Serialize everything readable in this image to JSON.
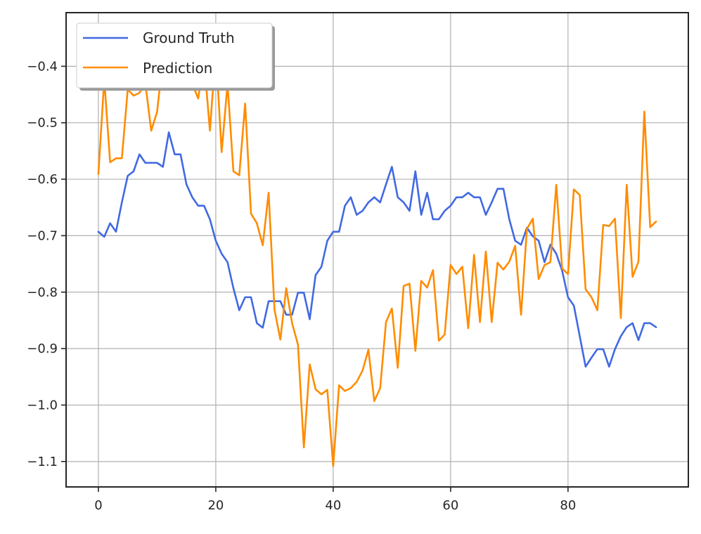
{
  "chart_data": {
    "type": "line",
    "title": "",
    "xlabel": "",
    "ylabel": "",
    "xlim": [
      -5.5,
      100.5
    ],
    "ylim": [
      -1.145,
      -0.305
    ],
    "xticks": [
      0,
      20,
      40,
      60,
      80
    ],
    "yticks": [
      -0.4,
      -0.5,
      -0.6,
      -0.7,
      -0.8,
      -0.9,
      -1.0,
      -1.1
    ],
    "grid": true,
    "legend": "top-left",
    "series": [
      {
        "name": "Ground Truth",
        "color": "#4169e1",
        "x": [
          0,
          1,
          2,
          3,
          4,
          5,
          6,
          7,
          8,
          9,
          10,
          11,
          12,
          13,
          14,
          15,
          16,
          17,
          18,
          19,
          20,
          21,
          22,
          23,
          24,
          25,
          26,
          27,
          28,
          29,
          30,
          31,
          32,
          33,
          34,
          35,
          36,
          37,
          38,
          39,
          40,
          41,
          42,
          43,
          44,
          45,
          46,
          47,
          48,
          49,
          50,
          51,
          52,
          53,
          54,
          55,
          56,
          57,
          58,
          59,
          60,
          61,
          62,
          63,
          64,
          65,
          66,
          67,
          68,
          69,
          70,
          71,
          72,
          73,
          74,
          75,
          76,
          77,
          78,
          79,
          80,
          81,
          82,
          83,
          84,
          85,
          86,
          87,
          88,
          89,
          90,
          91,
          92,
          93,
          94,
          95
        ],
        "values": [
          -0.693,
          -0.702,
          -0.678,
          -0.693,
          -0.641,
          -0.594,
          -0.586,
          -0.556,
          -0.571,
          -0.571,
          -0.571,
          -0.578,
          -0.517,
          -0.556,
          -0.556,
          -0.609,
          -0.632,
          -0.647,
          -0.647,
          -0.671,
          -0.709,
          -0.732,
          -0.747,
          -0.793,
          -0.832,
          -0.809,
          -0.809,
          -0.855,
          -0.863,
          -0.816,
          -0.816,
          -0.816,
          -0.84,
          -0.84,
          -0.801,
          -0.801,
          -0.848,
          -0.77,
          -0.755,
          -0.709,
          -0.693,
          -0.693,
          -0.647,
          -0.632,
          -0.663,
          -0.656,
          -0.641,
          -0.632,
          -0.641,
          -0.609,
          -0.578,
          -0.632,
          -0.641,
          -0.656,
          -0.586,
          -0.663,
          -0.624,
          -0.671,
          -0.671,
          -0.656,
          -0.647,
          -0.632,
          -0.632,
          -0.624,
          -0.632,
          -0.632,
          -0.663,
          -0.641,
          -0.617,
          -0.617,
          -0.671,
          -0.709,
          -0.716,
          -0.686,
          -0.701,
          -0.709,
          -0.747,
          -0.716,
          -0.732,
          -0.762,
          -0.809,
          -0.824,
          -0.878,
          -0.932,
          -0.916,
          -0.901,
          -0.901,
          -0.932,
          -0.901,
          -0.878,
          -0.862,
          -0.855,
          -0.885,
          -0.855,
          -0.855,
          -0.862
        ]
      },
      {
        "name": "Prediction",
        "color": "#ff8c00",
        "x": [
          0,
          1,
          2,
          3,
          4,
          5,
          6,
          7,
          8,
          9,
          10,
          11,
          12,
          13,
          14,
          15,
          16,
          17,
          18,
          19,
          20,
          21,
          22,
          23,
          24,
          25,
          26,
          27,
          28,
          29,
          30,
          31,
          32,
          33,
          34,
          35,
          36,
          37,
          38,
          39,
          40,
          41,
          42,
          43,
          44,
          45,
          46,
          47,
          48,
          49,
          50,
          51,
          52,
          53,
          54,
          55,
          56,
          57,
          58,
          59,
          60,
          61,
          62,
          63,
          64,
          65,
          66,
          67,
          68,
          69,
          70,
          71,
          72,
          73,
          74,
          75,
          76,
          77,
          78,
          79,
          80,
          81,
          82,
          83,
          84,
          85,
          86,
          87,
          88,
          89,
          90,
          91,
          92,
          93,
          94,
          95
        ],
        "values": [
          -0.591,
          -0.423,
          -0.57,
          -0.563,
          -0.563,
          -0.441,
          -0.452,
          -0.447,
          -0.43,
          -0.514,
          -0.481,
          -0.385,
          -0.394,
          -0.39,
          -0.435,
          -0.39,
          -0.431,
          -0.457,
          -0.39,
          -0.514,
          -0.372,
          -0.552,
          -0.431,
          -0.586,
          -0.593,
          -0.466,
          -0.661,
          -0.678,
          -0.717,
          -0.624,
          -0.831,
          -0.884,
          -0.793,
          -0.855,
          -0.893,
          -1.075,
          -0.928,
          -0.972,
          -0.981,
          -0.973,
          -1.108,
          -0.965,
          -0.975,
          -0.97,
          -0.959,
          -0.939,
          -0.902,
          -0.993,
          -0.97,
          -0.853,
          -0.829,
          -0.934,
          -0.789,
          -0.785,
          -0.904,
          -0.78,
          -0.792,
          -0.761,
          -0.886,
          -0.875,
          -0.752,
          -0.768,
          -0.755,
          -0.864,
          -0.734,
          -0.853,
          -0.728,
          -0.853,
          -0.748,
          -0.76,
          -0.746,
          -0.718,
          -0.84,
          -0.688,
          -0.67,
          -0.777,
          -0.752,
          -0.747,
          -0.61,
          -0.758,
          -0.768,
          -0.618,
          -0.628,
          -0.795,
          -0.809,
          -0.832,
          -0.681,
          -0.683,
          -0.67,
          -0.846,
          -0.61,
          -0.773,
          -0.746,
          -0.48,
          -0.685,
          -0.675
        ]
      }
    ]
  }
}
